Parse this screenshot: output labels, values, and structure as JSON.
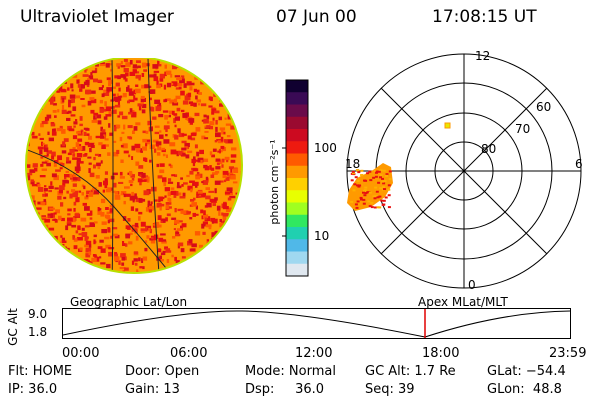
{
  "header": {
    "instrument": "Ultraviolet Imager",
    "date": "07 Jun 00",
    "time": "17:08:15 UT"
  },
  "colorbar": {
    "unit_label": "photon cm⁻²s⁻¹",
    "ticks": [
      "100",
      "10"
    ],
    "colors": [
      "#100030",
      "#3a0a55",
      "#6a0b4a",
      "#9a0a30",
      "#cc0a20",
      "#ee1a10",
      "#ff5a00",
      "#ff9a00",
      "#ffd000",
      "#e8ff00",
      "#a0ff20",
      "#30e860",
      "#20d0b0",
      "#50b8e8",
      "#a0d8f0",
      "#e0e8f0"
    ]
  },
  "polar_plot": {
    "mlt_labels": [
      "12",
      "18",
      "6",
      "0"
    ],
    "mlat_labels": [
      "60",
      "70",
      "80"
    ]
  },
  "altitude_panel": {
    "title_left": "Geographic Lat/Lon",
    "title_right": "Apex MLat/MLT",
    "axis_label": "GC Alt",
    "y_ticks": [
      "9.0",
      "1.8"
    ],
    "x_ticks": [
      "00:00",
      "06:00",
      "12:00",
      "18:00",
      "23:59"
    ],
    "current_time_fraction": 0.7141
  },
  "status": {
    "flt": "Flt: HOME",
    "ip": "IP: 36.0",
    "door": "Door: Open",
    "gain": "Gain: 13",
    "mode": "Mode: Normal",
    "dsp": "Dsp:     36.0",
    "gc_alt": "GC Alt: 1.7 Re",
    "seq": "Seq: 39",
    "glat": "GLat: −54.4",
    "glon": "GLon:  48.8"
  }
}
